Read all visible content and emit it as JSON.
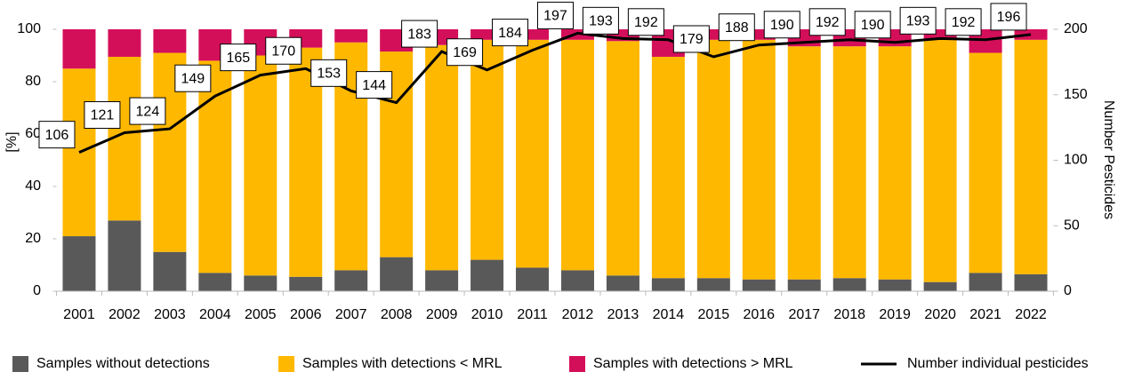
{
  "chart_data": {
    "type": "bar",
    "stacked": true,
    "categories": [
      "2001",
      "2002",
      "2003",
      "2004",
      "2005",
      "2006",
      "2007",
      "2008",
      "2009",
      "2010",
      "2011",
      "2012",
      "2013",
      "2014",
      "2015",
      "2016",
      "2017",
      "2018",
      "2019",
      "2020",
      "2021",
      "2022"
    ],
    "ylabel": "[%]",
    "y2label": "Number Pesticides",
    "ylim": [
      0,
      100
    ],
    "yticks": [
      0,
      20,
      40,
      60,
      80,
      100
    ],
    "y2lim": [
      0,
      200
    ],
    "y2ticks": [
      0,
      50,
      100,
      150,
      200
    ],
    "grid": false,
    "legend": "bottom",
    "series": [
      {
        "name": "Samples without detections",
        "color": "#595959",
        "values": [
          21,
          27,
          15,
          7,
          6,
          5.5,
          8,
          13,
          8,
          12,
          9,
          8,
          6,
          5,
          5,
          4.5,
          4.5,
          5,
          4.5,
          3.5,
          7,
          6.5
        ]
      },
      {
        "name": "Samples with detections < MRL",
        "color": "#ffb800",
        "values": [
          64,
          62.5,
          76,
          81,
          84,
          87.5,
          87,
          78.5,
          86,
          84,
          87,
          88,
          89.5,
          84.5,
          91,
          91.5,
          89,
          88.5,
          89,
          92.5,
          84,
          89.5
        ]
      },
      {
        "name": "Samples with detections > MRL",
        "color": "#d40f5a",
        "values": [
          15,
          10.5,
          9,
          12,
          10,
          7,
          5,
          8.5,
          6,
          4,
          4,
          4,
          4.5,
          10.5,
          4,
          4,
          6.5,
          6.5,
          6.5,
          4,
          9,
          4
        ]
      },
      {
        "name": "Number individual pesticides",
        "type": "line",
        "axis": "y2",
        "color": "#000000",
        "values": [
          106,
          121,
          124,
          149,
          165,
          170,
          153,
          144,
          183,
          169,
          184,
          197,
          193,
          192,
          179,
          188,
          190,
          192,
          190,
          193,
          192,
          196
        ]
      }
    ]
  }
}
